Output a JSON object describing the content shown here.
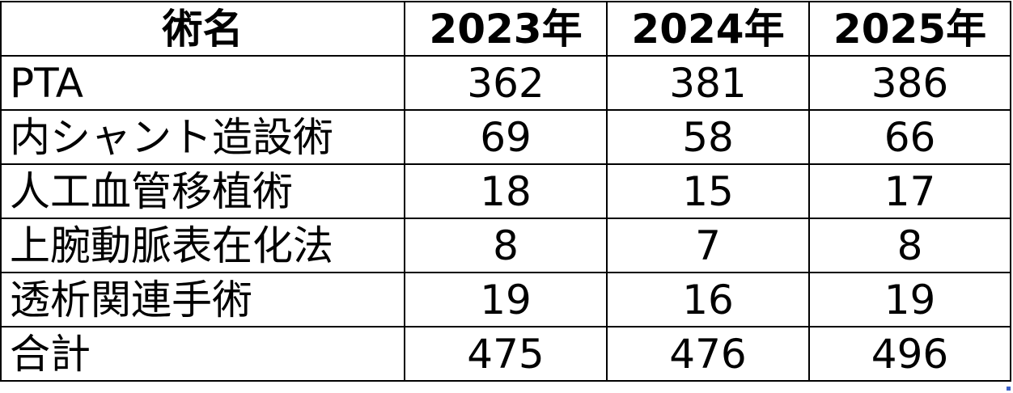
{
  "table": {
    "headers": [
      "術名",
      "2023年",
      "2024年",
      "2025年"
    ],
    "rows": [
      {
        "name": "PTA",
        "values": [
          "362",
          "381",
          "386"
        ]
      },
      {
        "name": "内シャント造設術",
        "values": [
          "69",
          "58",
          "66"
        ]
      },
      {
        "name": "人工血管移植術",
        "values": [
          "18",
          "15",
          "17"
        ]
      },
      {
        "name": "上腕動脈表在化法",
        "values": [
          "8",
          "7",
          "8"
        ]
      },
      {
        "name": "透析関連手術",
        "values": [
          "19",
          "16",
          "19"
        ]
      },
      {
        "name": "合計",
        "values": [
          "475",
          "476",
          "496"
        ]
      }
    ]
  }
}
